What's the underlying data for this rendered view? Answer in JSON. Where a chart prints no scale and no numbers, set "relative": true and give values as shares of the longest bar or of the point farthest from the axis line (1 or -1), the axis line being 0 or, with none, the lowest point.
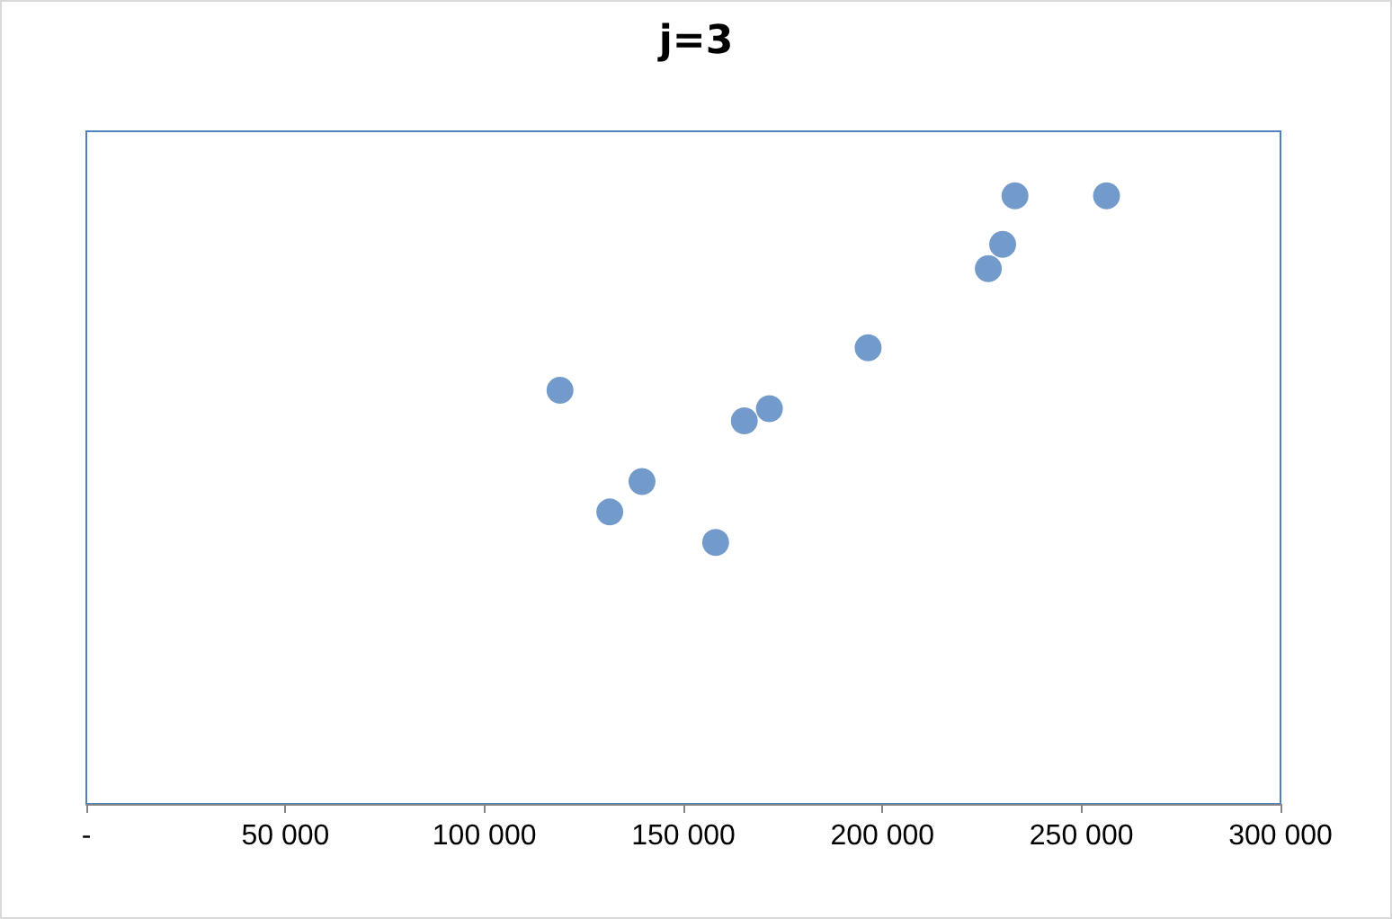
{
  "chart_data": {
    "type": "scatter",
    "title": "j=3",
    "relative": true,
    "marker": "circle",
    "x": [
      119000,
      131500,
      139600,
      158100,
      165300,
      171600,
      196400,
      226600,
      230200,
      233300,
      256300
    ],
    "series": [
      {
        "color": "#4f81bd",
        "values": [
          0.68,
          0.48,
          0.53,
          0.43,
          0.63,
          0.65,
          0.75,
          0.88,
          0.92,
          1,
          1
        ]
      }
    ],
    "xlim": [
      0,
      300000
    ],
    "xticks": [
      {
        "value": 0,
        "label": "-"
      },
      {
        "value": 50000,
        "label": "50 000"
      },
      {
        "value": 100000,
        "label": "100 000"
      },
      {
        "value": 150000,
        "label": "150 000"
      },
      {
        "value": 200000,
        "label": "200 000"
      },
      {
        "value": 250000,
        "label": "250 000"
      },
      {
        "value": 300000,
        "label": "300 000"
      }
    ]
  }
}
